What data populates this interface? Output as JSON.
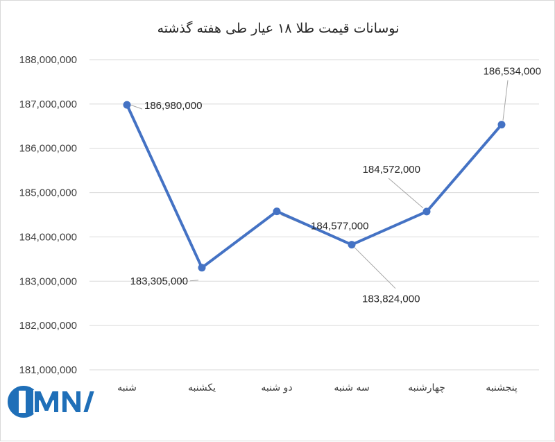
{
  "chart_data": {
    "type": "line",
    "title": "نوسانات قیمت طلا ۱۸ عیار طی هفته گذشته",
    "categories": [
      "شنبه",
      "یکشنبه",
      "دو شنبه",
      "سه شنبه",
      "چهارشنبه",
      "پنجشنبه"
    ],
    "series": [
      {
        "values": [
          186980000,
          183305000,
          184577000,
          183824000,
          184572000,
          186534000
        ]
      }
    ],
    "data_labels": [
      "186,980,000",
      "183,305,000",
      "184,577,000",
      "183,824,000",
      "184,572,000",
      "186,534,000"
    ],
    "yticks": [
      "181,000,000",
      "182,000,000",
      "183,000,000",
      "184,000,000",
      "185,000,000",
      "186,000,000",
      "187,000,000",
      "188,000,000"
    ],
    "ylim": [
      181000000,
      188000000
    ],
    "grid": true,
    "legend": "none",
    "colors": {
      "line": "#4472c4",
      "grid": "#d9d9d9",
      "leader": "#a6a6a6"
    }
  },
  "watermark": {
    "text": "IMNA",
    "color": "#1f6fb8"
  }
}
